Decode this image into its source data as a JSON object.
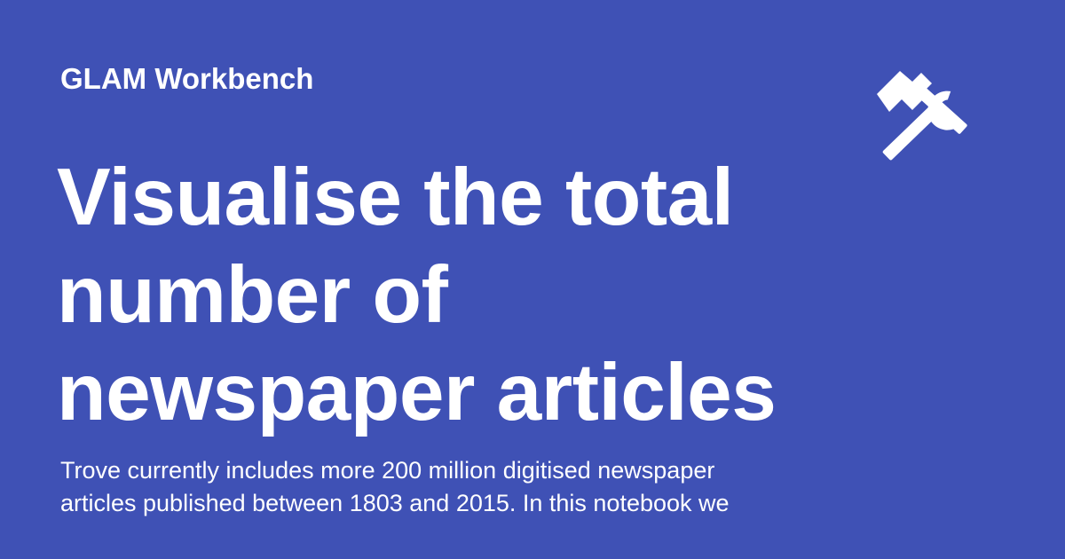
{
  "card": {
    "site_name": "GLAM Workbench",
    "title_lines": [
      "Visualise the total",
      "number of",
      "newspaper articles"
    ],
    "description_lines": [
      "Trove currently includes more 200 million digitised newspaper",
      "articles published between 1803 and 2015. In this notebook we"
    ],
    "icon": "hammer-wrench-icon",
    "colors": {
      "background": "#3f51b5",
      "text": "#ffffff"
    }
  }
}
